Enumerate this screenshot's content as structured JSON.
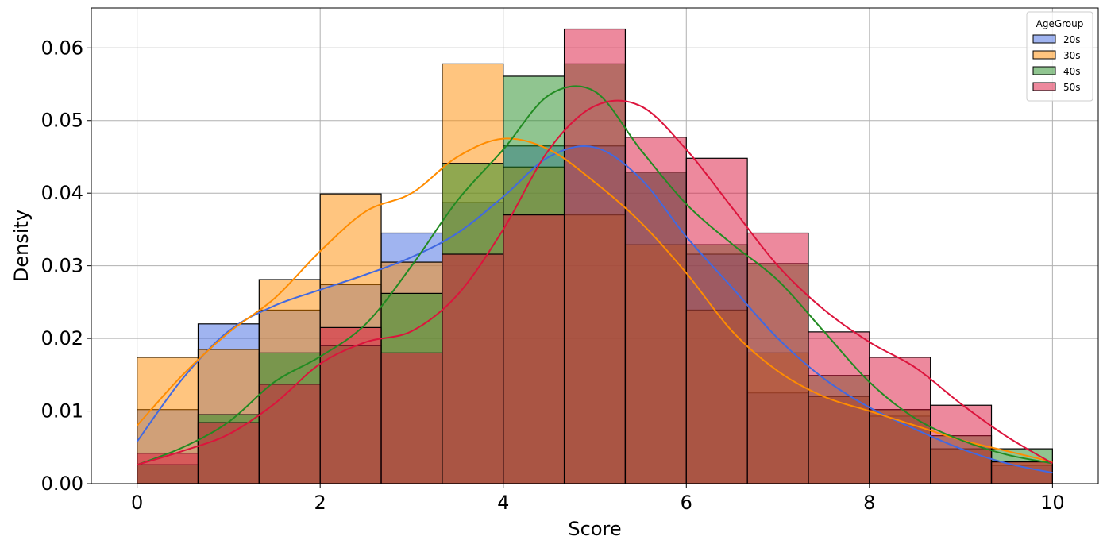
{
  "chart_data": {
    "type": "histogram",
    "xlabel": "Score",
    "ylabel": "Density",
    "xlim": [
      -0.5,
      10.5
    ],
    "ylim": [
      0,
      0.0655
    ],
    "xticks": [
      "0",
      "2",
      "4",
      "6",
      "8",
      "10"
    ],
    "yticks": [
      "0.00",
      "0.01",
      "0.02",
      "0.03",
      "0.04",
      "0.05",
      "0.06"
    ],
    "grid": true,
    "legend": {
      "title": "AgeGroup",
      "placement": "top-right"
    },
    "bin_edges": [
      0,
      0.6667,
      1.3333,
      2.0,
      2.6667,
      3.3333,
      4.0,
      4.6667,
      5.3333,
      6.0,
      6.6667,
      7.3333,
      8.0,
      8.6667,
      9.3333,
      10.0
    ],
    "series": [
      {
        "name": "20s",
        "color": "#4169e1",
        "density": [
          0.0102,
          0.022,
          0.0239,
          0.0274,
          0.0345,
          0.0387,
          0.0465,
          0.0465,
          0.0429,
          0.0316,
          0.0125,
          0.012,
          0.0093,
          0.0048,
          0.0025
        ],
        "kde_x": [
          0,
          0.5,
          1,
          1.5,
          2,
          2.5,
          3,
          3.5,
          4,
          4.5,
          5,
          5.5,
          6,
          6.5,
          7,
          7.5,
          8,
          8.5,
          9,
          9.5,
          10
        ],
        "kde_y": [
          0.0058,
          0.0145,
          0.021,
          0.0245,
          0.0267,
          0.0288,
          0.0312,
          0.0345,
          0.0395,
          0.045,
          0.0463,
          0.042,
          0.034,
          0.027,
          0.02,
          0.0145,
          0.0105,
          0.0075,
          0.0048,
          0.0028,
          0.0015
        ]
      },
      {
        "name": "30s",
        "color": "#ff8c00",
        "density": [
          0.0174,
          0.0185,
          0.0281,
          0.0399,
          0.0305,
          0.0578,
          0.0436,
          0.037,
          0.0329,
          0.0239,
          0.018,
          0.012,
          0.0102,
          0.0048,
          0.003
        ],
        "kde_x": [
          0,
          0.5,
          1,
          1.5,
          2,
          2.5,
          3,
          3.5,
          4,
          4.5,
          5,
          5.5,
          6,
          6.5,
          7,
          7.5,
          8,
          8.5,
          9,
          9.5,
          10
        ],
        "kde_y": [
          0.008,
          0.015,
          0.0208,
          0.0255,
          0.032,
          0.0375,
          0.04,
          0.045,
          0.0475,
          0.046,
          0.0415,
          0.036,
          0.029,
          0.021,
          0.0155,
          0.012,
          0.01,
          0.008,
          0.006,
          0.0045,
          0.003
        ]
      },
      {
        "name": "40s",
        "color": "#228b22",
        "density": [
          0.0026,
          0.0095,
          0.018,
          0.019,
          0.0262,
          0.0441,
          0.0561,
          0.0578,
          0.0429,
          0.0329,
          0.0303,
          0.0149,
          0.0102,
          0.0066,
          0.0048
        ],
        "kde_x": [
          0,
          0.5,
          1,
          1.5,
          2,
          2.5,
          3,
          3.5,
          4,
          4.5,
          5,
          5.5,
          6,
          6.5,
          7,
          7.5,
          8,
          8.5,
          9,
          9.5,
          10
        ],
        "kde_y": [
          0.0026,
          0.005,
          0.0085,
          0.014,
          0.0175,
          0.022,
          0.03,
          0.039,
          0.046,
          0.0535,
          0.054,
          0.046,
          0.0385,
          0.033,
          0.028,
          0.021,
          0.014,
          0.009,
          0.006,
          0.004,
          0.0028
        ]
      },
      {
        "name": "50s",
        "color": "#dc143c",
        "density": [
          0.0042,
          0.0084,
          0.0137,
          0.0215,
          0.018,
          0.0316,
          0.037,
          0.0626,
          0.0477,
          0.0448,
          0.0345,
          0.0209,
          0.0174,
          0.0108,
          0.003
        ],
        "kde_x": [
          0,
          0.5,
          1,
          1.5,
          2,
          2.5,
          3,
          3.5,
          4,
          4.5,
          5,
          5.5,
          6,
          6.5,
          7,
          7.5,
          8,
          8.5,
          9,
          9.5,
          10
        ],
        "kde_y": [
          0.0026,
          0.0045,
          0.0068,
          0.011,
          0.0165,
          0.0195,
          0.021,
          0.026,
          0.035,
          0.046,
          0.052,
          0.052,
          0.046,
          0.038,
          0.03,
          0.024,
          0.0195,
          0.016,
          0.011,
          0.0065,
          0.0028
        ]
      }
    ]
  }
}
